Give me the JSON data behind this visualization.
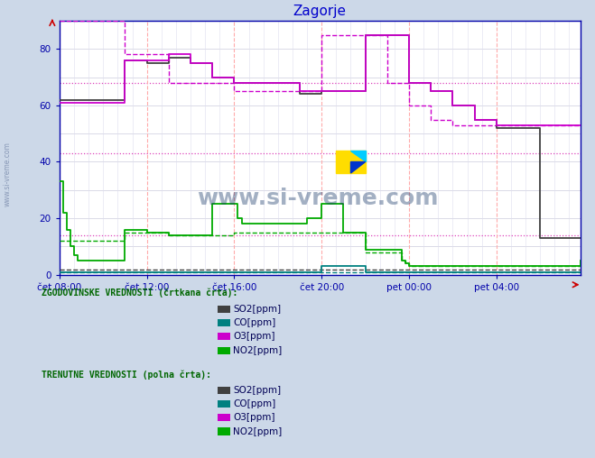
{
  "title": "Zagorje",
  "title_color": "#0000cc",
  "background_color": "#ccd8e8",
  "plot_bg_color": "#ffffff",
  "xlim": [
    0,
    143
  ],
  "ylim": [
    0,
    90
  ],
  "yticks": [
    0,
    20,
    40,
    60,
    80
  ],
  "xtick_labels": [
    "čet 08:00",
    "čet 12:00",
    "čet 16:00",
    "čet 20:00",
    "pet 00:00",
    "pet 04:00"
  ],
  "xtick_positions": [
    0,
    24,
    48,
    72,
    96,
    120
  ],
  "watermark": "www.si-vreme.com",
  "watermark_color": "#1a3a6a",
  "so2_color": "#404040",
  "co_color": "#008080",
  "o3_color": "#cc00cc",
  "no2_color": "#00aa00",
  "hline1_y": 68,
  "hline2_y": 43,
  "hline3_y": 14,
  "o3_current": [
    61,
    61,
    61,
    61,
    61,
    61,
    61,
    61,
    61,
    61,
    61,
    61,
    61,
    61,
    61,
    61,
    61,
    61,
    76,
    76,
    76,
    76,
    76,
    76,
    76,
    76,
    76,
    76,
    76,
    76,
    78,
    78,
    78,
    78,
    78,
    78,
    75,
    75,
    75,
    75,
    75,
    75,
    70,
    70,
    70,
    70,
    70,
    70,
    68,
    68,
    68,
    68,
    68,
    68,
    68,
    68,
    68,
    68,
    68,
    68,
    68,
    68,
    68,
    68,
    68,
    68,
    65,
    65,
    65,
    65,
    65,
    65,
    65,
    65,
    65,
    65,
    65,
    65,
    65,
    65,
    65,
    65,
    65,
    65,
    85,
    85,
    85,
    85,
    85,
    85,
    85,
    85,
    85,
    85,
    85,
    85,
    68,
    68,
    68,
    68,
    68,
    68,
    65,
    65,
    65,
    65,
    65,
    65,
    60,
    60,
    60,
    60,
    60,
    60,
    55,
    55,
    55,
    55,
    55,
    55,
    53,
    53,
    53,
    53,
    53,
    53,
    53,
    53,
    53,
    53,
    53,
    53,
    53,
    53,
    53,
    53,
    53,
    53,
    53,
    53,
    53,
    53,
    53,
    53
  ],
  "o3_hist": [
    90,
    90,
    90,
    90,
    90,
    90,
    90,
    90,
    90,
    90,
    90,
    90,
    90,
    90,
    90,
    90,
    90,
    90,
    78,
    78,
    78,
    78,
    78,
    78,
    78,
    78,
    78,
    78,
    78,
    78,
    68,
    68,
    68,
    68,
    68,
    68,
    68,
    68,
    68,
    68,
    68,
    68,
    68,
    68,
    68,
    68,
    68,
    68,
    65,
    65,
    65,
    65,
    65,
    65,
    65,
    65,
    65,
    65,
    65,
    65,
    65,
    65,
    65,
    65,
    65,
    65,
    65,
    65,
    65,
    65,
    65,
    65,
    85,
    85,
    85,
    85,
    85,
    85,
    85,
    85,
    85,
    85,
    85,
    85,
    85,
    85,
    85,
    85,
    85,
    85,
    68,
    68,
    68,
    68,
    68,
    68,
    60,
    60,
    60,
    60,
    60,
    60,
    55,
    55,
    55,
    55,
    55,
    55,
    53,
    53,
    53,
    53,
    53,
    53,
    53,
    53,
    53,
    53,
    53,
    53,
    53,
    53,
    53,
    53,
    53,
    53,
    53,
    53,
    53,
    53,
    53,
    53,
    53,
    53,
    53,
    53,
    53,
    53,
    53,
    53,
    53,
    53,
    53,
    53
  ],
  "so2_current": [
    62,
    62,
    62,
    62,
    62,
    62,
    62,
    62,
    62,
    62,
    62,
    62,
    62,
    62,
    62,
    62,
    62,
    62,
    76,
    76,
    76,
    76,
    76,
    76,
    75,
    75,
    75,
    75,
    75,
    75,
    77,
    77,
    77,
    77,
    77,
    77,
    75,
    75,
    75,
    75,
    75,
    75,
    70,
    70,
    70,
    70,
    70,
    70,
    68,
    68,
    68,
    68,
    68,
    68,
    68,
    68,
    68,
    68,
    68,
    68,
    68,
    68,
    68,
    68,
    68,
    68,
    64,
    64,
    64,
    64,
    64,
    64,
    65,
    65,
    65,
    65,
    65,
    65,
    65,
    65,
    65,
    65,
    65,
    65,
    85,
    85,
    85,
    85,
    85,
    85,
    85,
    85,
    85,
    85,
    85,
    85,
    68,
    68,
    68,
    68,
    68,
    68,
    65,
    65,
    65,
    65,
    65,
    65,
    60,
    60,
    60,
    60,
    60,
    60,
    55,
    55,
    55,
    55,
    55,
    55,
    52,
    52,
    52,
    52,
    52,
    52,
    52,
    52,
    52,
    52,
    52,
    52,
    13,
    13,
    13,
    13,
    13,
    13,
    13,
    13,
    13,
    13,
    13,
    13
  ],
  "so2_hist": [
    2,
    2,
    2,
    2,
    2,
    2,
    2,
    2,
    2,
    2,
    2,
    2,
    2,
    2,
    2,
    2,
    2,
    2,
    2,
    2,
    2,
    2,
    2,
    2,
    2,
    2,
    2,
    2,
    2,
    2,
    2,
    2,
    2,
    2,
    2,
    2,
    2,
    2,
    2,
    2,
    2,
    2,
    2,
    2,
    2,
    2,
    2,
    2,
    2,
    2,
    2,
    2,
    2,
    2,
    2,
    2,
    2,
    2,
    2,
    2,
    2,
    2,
    2,
    2,
    2,
    2,
    2,
    2,
    2,
    2,
    2,
    2,
    2,
    2,
    2,
    2,
    2,
    2,
    2,
    2,
    2,
    2,
    2,
    2,
    2,
    2,
    2,
    2,
    2,
    2,
    2,
    2,
    2,
    2,
    2,
    2,
    2,
    2,
    2,
    2,
    2,
    2,
    2,
    2,
    2,
    2,
    2,
    2,
    2,
    2,
    2,
    2,
    2,
    2,
    2,
    2,
    2,
    2,
    2,
    2,
    2,
    2,
    2,
    2,
    2,
    2,
    2,
    2,
    2,
    2,
    2,
    2,
    2,
    2,
    2,
    2,
    2,
    2,
    2,
    2,
    2,
    2,
    2,
    2
  ],
  "no2_current": [
    33,
    22,
    16,
    10,
    7,
    5,
    5,
    5,
    5,
    5,
    5,
    5,
    5,
    5,
    5,
    5,
    5,
    5,
    16,
    16,
    16,
    16,
    16,
    16,
    15,
    15,
    15,
    15,
    15,
    15,
    14,
    14,
    14,
    14,
    14,
    14,
    14,
    14,
    14,
    14,
    14,
    14,
    25,
    25,
    25,
    25,
    25,
    25,
    25,
    20,
    18,
    18,
    18,
    18,
    18,
    18,
    18,
    18,
    18,
    18,
    18,
    18,
    18,
    18,
    18,
    18,
    18,
    18,
    20,
    20,
    20,
    20,
    25,
    25,
    25,
    25,
    25,
    25,
    15,
    15,
    15,
    15,
    15,
    15,
    9,
    9,
    9,
    9,
    9,
    9,
    9,
    9,
    9,
    9,
    5,
    4,
    3,
    3,
    3,
    3,
    3,
    3,
    3,
    3,
    3,
    3,
    3,
    3,
    3,
    3,
    3,
    3,
    3,
    3,
    3,
    3,
    3,
    3,
    3,
    3,
    3,
    3,
    3,
    3,
    3,
    3,
    3,
    3,
    3,
    3,
    3,
    3,
    3,
    3,
    3,
    3,
    3,
    3,
    3,
    3,
    3,
    3,
    3,
    5
  ],
  "no2_hist": [
    12,
    12,
    12,
    12,
    12,
    12,
    12,
    12,
    12,
    12,
    12,
    12,
    12,
    12,
    12,
    12,
    12,
    12,
    15,
    15,
    15,
    15,
    15,
    15,
    15,
    15,
    15,
    15,
    15,
    15,
    14,
    14,
    14,
    14,
    14,
    14,
    14,
    14,
    14,
    14,
    14,
    14,
    14,
    14,
    14,
    14,
    14,
    14,
    15,
    15,
    15,
    15,
    15,
    15,
    15,
    15,
    15,
    15,
    15,
    15,
    15,
    15,
    15,
    15,
    15,
    15,
    15,
    15,
    15,
    15,
    15,
    15,
    15,
    15,
    15,
    15,
    15,
    15,
    15,
    15,
    15,
    15,
    15,
    15,
    8,
    8,
    8,
    8,
    8,
    8,
    8,
    8,
    8,
    8,
    5,
    4,
    3,
    3,
    3,
    3,
    3,
    3,
    3,
    3,
    3,
    3,
    3,
    3,
    3,
    3,
    3,
    3,
    3,
    3,
    3,
    3,
    3,
    3,
    3,
    3,
    3,
    3,
    3,
    3,
    3,
    3,
    3,
    3,
    3,
    3,
    3,
    3,
    3,
    3,
    3,
    3,
    3,
    3,
    3,
    3,
    3,
    3,
    3,
    3
  ],
  "co_current": [
    1,
    1,
    1,
    1,
    1,
    1,
    1,
    1,
    1,
    1,
    1,
    1,
    1,
    1,
    1,
    1,
    1,
    1,
    1,
    1,
    1,
    1,
    1,
    1,
    1,
    1,
    1,
    1,
    1,
    1,
    1,
    1,
    1,
    1,
    1,
    1,
    1,
    1,
    1,
    1,
    1,
    1,
    1,
    1,
    1,
    1,
    1,
    1,
    1,
    1,
    1,
    1,
    1,
    1,
    1,
    1,
    1,
    1,
    1,
    1,
    1,
    1,
    1,
    1,
    1,
    1,
    1,
    1,
    1,
    1,
    1,
    1,
    3,
    3,
    3,
    3,
    3,
    3,
    3,
    3,
    3,
    3,
    3,
    3,
    1,
    1,
    1,
    1,
    1,
    1,
    1,
    1,
    1,
    1,
    1,
    1,
    1,
    1,
    1,
    1,
    1,
    1,
    1,
    1,
    1,
    1,
    1,
    1,
    1,
    1,
    1,
    1,
    1,
    1,
    1,
    1,
    1,
    1,
    1,
    1,
    1,
    1,
    1,
    1,
    1,
    1,
    1,
    1,
    1,
    1,
    1,
    1,
    1,
    1,
    1,
    1,
    1,
    1,
    1,
    1,
    1,
    1,
    1,
    1
  ],
  "co_hist": [
    1,
    1,
    1,
    1,
    1,
    1,
    1,
    1,
    1,
    1,
    1,
    1,
    1,
    1,
    1,
    1,
    1,
    1,
    1,
    1,
    1,
    1,
    1,
    1,
    1,
    1,
    1,
    1,
    1,
    1,
    1,
    1,
    1,
    1,
    1,
    1,
    1,
    1,
    1,
    1,
    1,
    1,
    1,
    1,
    1,
    1,
    1,
    1,
    1,
    1,
    1,
    1,
    1,
    1,
    1,
    1,
    1,
    1,
    1,
    1,
    1,
    1,
    1,
    1,
    1,
    1,
    1,
    1,
    1,
    1,
    1,
    1,
    1,
    1,
    1,
    1,
    1,
    1,
    1,
    1,
    1,
    1,
    1,
    1,
    1,
    1,
    1,
    1,
    1,
    1,
    1,
    1,
    1,
    1,
    1,
    1,
    1,
    1,
    1,
    1,
    1,
    1,
    1,
    1,
    1,
    1,
    1,
    1,
    1,
    1,
    1,
    1,
    1,
    1,
    1,
    1,
    1,
    1,
    1,
    1,
    1,
    1,
    1,
    1,
    1,
    1,
    1,
    1,
    1,
    1,
    1,
    1,
    1,
    1,
    1,
    1,
    1,
    1,
    1,
    1,
    1,
    1,
    1,
    1
  ],
  "legend_hist_label": "ZGODOVINSKE VREDNOSTI (črtkana črta):",
  "legend_curr_label": "TRENUTNE VREDNOSTI (polna črta):",
  "legend_so2": "SO2[ppm]",
  "legend_co": "CO[ppm]",
  "legend_o3": "O3[ppm]",
  "legend_no2": "NO2[ppm]",
  "axis_color": "#0000aa",
  "tick_color": "#0000aa"
}
